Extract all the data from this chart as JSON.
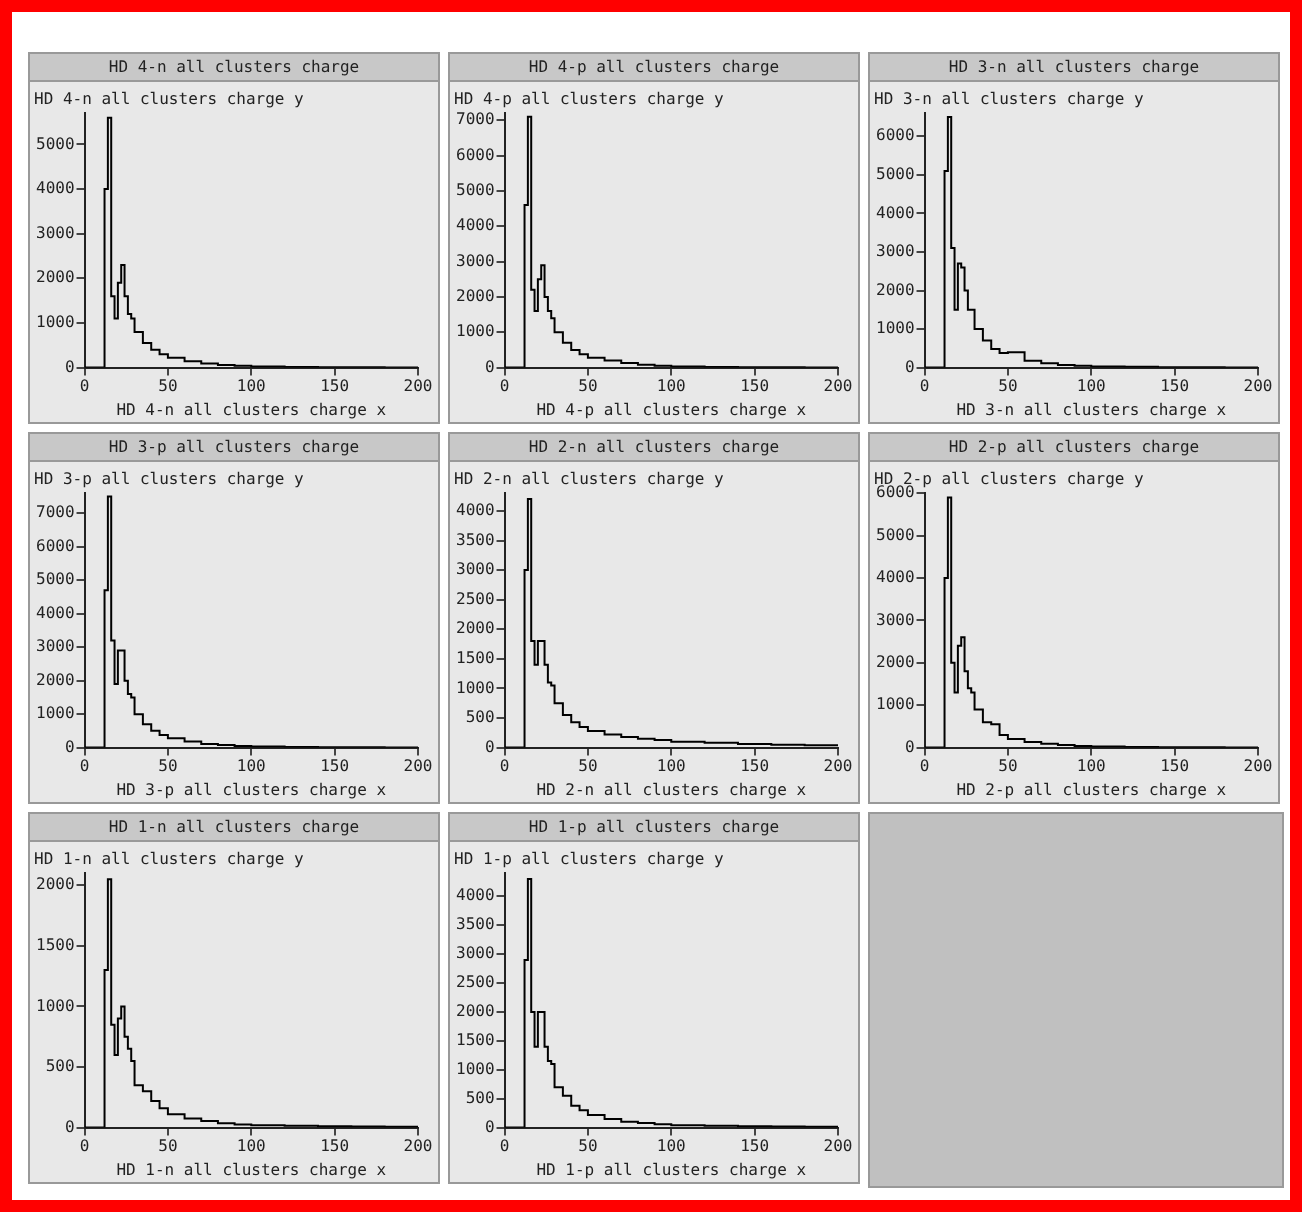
{
  "chart_data": [
    {
      "type": "histogram",
      "title": "HD 4-n all clusters charge",
      "ylabel": "HD 4-n all clusters charge y",
      "xlabel": "HD 4-n all clusters charge x",
      "bins": [
        0,
        10,
        12,
        14,
        16,
        18,
        20,
        22,
        24,
        26,
        28,
        30,
        35,
        40,
        45,
        50,
        60,
        70,
        80,
        90,
        100,
        120,
        140,
        160,
        180,
        200
      ],
      "values": [
        0,
        0,
        4000,
        5600,
        1600,
        1100,
        1900,
        2300,
        1600,
        1200,
        1100,
        800,
        550,
        400,
        300,
        220,
        140,
        90,
        60,
        40,
        25,
        15,
        10,
        8,
        5
      ],
      "color": "#000000",
      "xlim": [
        0,
        200
      ],
      "xticks": [
        0,
        50,
        100,
        150,
        200
      ],
      "ylim": [
        0,
        5700
      ],
      "yticks": [
        0,
        1000,
        2000,
        3000,
        4000,
        5000
      ],
      "grid": false,
      "legend": false
    },
    {
      "type": "histogram",
      "title": "HD 4-p all clusters charge",
      "ylabel": "HD 4-p all clusters charge y",
      "xlabel": "HD 4-p all clusters charge x",
      "bins": [
        0,
        10,
        12,
        14,
        16,
        18,
        20,
        22,
        24,
        26,
        28,
        30,
        35,
        40,
        45,
        50,
        60,
        70,
        80,
        90,
        100,
        120,
        140,
        160,
        180,
        200
      ],
      "values": [
        0,
        0,
        4600,
        7100,
        2200,
        1600,
        2500,
        2900,
        2000,
        1600,
        1400,
        1000,
        700,
        500,
        380,
        280,
        200,
        130,
        80,
        50,
        30,
        20,
        12,
        8,
        5
      ],
      "color": "#000000",
      "xlim": [
        0,
        200
      ],
      "xticks": [
        0,
        50,
        100,
        150,
        200
      ],
      "ylim": [
        0,
        7200
      ],
      "yticks": [
        0,
        1000,
        2000,
        3000,
        4000,
        5000,
        6000,
        7000
      ],
      "grid": false,
      "legend": false
    },
    {
      "type": "histogram",
      "title": "HD 3-n all clusters charge",
      "ylabel": "HD 3-n all clusters charge y",
      "xlabel": "HD 3-n all clusters charge x",
      "bins": [
        0,
        10,
        12,
        14,
        16,
        18,
        20,
        22,
        24,
        26,
        28,
        30,
        35,
        40,
        45,
        50,
        60,
        70,
        80,
        90,
        100,
        120,
        140,
        160,
        180,
        200
      ],
      "values": [
        0,
        0,
        5100,
        6500,
        3100,
        1500,
        2700,
        2600,
        2000,
        1500,
        1500,
        1000,
        700,
        480,
        380,
        400,
        180,
        110,
        70,
        50,
        30,
        20,
        12,
        8,
        5
      ],
      "color": "#000000",
      "xlim": [
        0,
        200
      ],
      "xticks": [
        0,
        50,
        100,
        150,
        200
      ],
      "ylim": [
        0,
        6600
      ],
      "yticks": [
        0,
        1000,
        2000,
        3000,
        4000,
        5000,
        6000
      ],
      "grid": false,
      "legend": false
    },
    {
      "type": "histogram",
      "title": "HD 3-p all clusters charge",
      "ylabel": "HD 3-p all clusters charge y",
      "xlabel": "HD 3-p all clusters charge x",
      "bins": [
        0,
        10,
        12,
        14,
        16,
        18,
        20,
        22,
        24,
        26,
        28,
        30,
        35,
        40,
        45,
        50,
        60,
        70,
        80,
        90,
        100,
        120,
        140,
        160,
        180,
        200
      ],
      "values": [
        0,
        0,
        4700,
        7500,
        3200,
        1900,
        2900,
        2900,
        2000,
        1600,
        1500,
        1000,
        700,
        500,
        380,
        280,
        180,
        110,
        80,
        50,
        30,
        20,
        12,
        8,
        5
      ],
      "color": "#000000",
      "xlim": [
        0,
        200
      ],
      "xticks": [
        0,
        50,
        100,
        150,
        200
      ],
      "ylim": [
        0,
        7600
      ],
      "yticks": [
        0,
        1000,
        2000,
        3000,
        4000,
        5000,
        6000,
        7000
      ],
      "grid": false,
      "legend": false
    },
    {
      "type": "histogram",
      "title": "HD 2-n all clusters charge",
      "ylabel": "HD 2-n all clusters charge y",
      "xlabel": "HD 2-n all clusters charge x",
      "bins": [
        0,
        10,
        12,
        14,
        16,
        18,
        20,
        22,
        24,
        26,
        28,
        30,
        35,
        40,
        45,
        50,
        60,
        70,
        80,
        90,
        100,
        120,
        140,
        160,
        180,
        200
      ],
      "values": [
        0,
        0,
        3000,
        4200,
        1800,
        1400,
        1800,
        1800,
        1400,
        1100,
        1050,
        750,
        550,
        430,
        350,
        280,
        220,
        180,
        150,
        130,
        100,
        80,
        60,
        50,
        40
      ],
      "color": "#000000",
      "xlim": [
        0,
        200
      ],
      "xticks": [
        0,
        50,
        100,
        150,
        200
      ],
      "ylim": [
        0,
        4300
      ],
      "yticks": [
        0,
        500,
        1000,
        1500,
        2000,
        2500,
        3000,
        3500,
        4000
      ],
      "grid": false,
      "legend": false
    },
    {
      "type": "histogram",
      "title": "HD 2-p all clusters charge",
      "ylabel": "HD 2-p all clusters charge y",
      "xlabel": "HD 2-p all clusters charge x",
      "bins": [
        0,
        10,
        12,
        14,
        16,
        18,
        20,
        22,
        24,
        26,
        28,
        30,
        35,
        40,
        45,
        50,
        60,
        70,
        80,
        90,
        100,
        120,
        140,
        160,
        180,
        200
      ],
      "values": [
        0,
        0,
        4000,
        5900,
        2000,
        1300,
        2400,
        2600,
        1800,
        1400,
        1300,
        900,
        600,
        550,
        300,
        200,
        130,
        90,
        60,
        40,
        25,
        15,
        10,
        8,
        5
      ],
      "color": "#000000",
      "xlim": [
        0,
        200
      ],
      "xticks": [
        0,
        50,
        100,
        150,
        200
      ],
      "ylim": [
        0,
        6000
      ],
      "yticks": [
        0,
        1000,
        2000,
        3000,
        4000,
        5000,
        6000
      ],
      "grid": false,
      "legend": false
    },
    {
      "type": "histogram",
      "title": "HD 1-n all clusters charge",
      "ylabel": "HD 1-n all clusters charge y",
      "xlabel": "HD 1-n all clusters charge x",
      "bins": [
        0,
        10,
        12,
        14,
        16,
        18,
        20,
        22,
        24,
        26,
        28,
        30,
        35,
        40,
        45,
        50,
        60,
        70,
        80,
        90,
        100,
        120,
        140,
        160,
        180,
        200
      ],
      "values": [
        0,
        0,
        1300,
        2050,
        850,
        600,
        900,
        1000,
        750,
        650,
        550,
        350,
        300,
        220,
        160,
        110,
        75,
        55,
        35,
        25,
        20,
        15,
        12,
        10,
        8
      ],
      "color": "#000000",
      "xlim": [
        0,
        200
      ],
      "xticks": [
        0,
        50,
        100,
        150,
        200
      ],
      "ylim": [
        0,
        2100
      ],
      "yticks": [
        0,
        500,
        1000,
        1500,
        2000
      ],
      "grid": false,
      "legend": false
    },
    {
      "type": "histogram",
      "title": "HD 1-p all clusters charge",
      "ylabel": "HD 1-p all clusters charge y",
      "xlabel": "HD 1-p all clusters charge x",
      "bins": [
        0,
        10,
        12,
        14,
        16,
        18,
        20,
        22,
        24,
        26,
        28,
        30,
        35,
        40,
        45,
        50,
        60,
        70,
        80,
        90,
        100,
        120,
        140,
        160,
        180,
        200
      ],
      "values": [
        0,
        0,
        2900,
        4300,
        2000,
        1400,
        2000,
        2000,
        1400,
        1150,
        1100,
        700,
        550,
        380,
        300,
        220,
        150,
        100,
        80,
        60,
        40,
        30,
        25,
        20,
        15
      ],
      "color": "#000000",
      "xlim": [
        0,
        200
      ],
      "xticks": [
        0,
        50,
        100,
        150,
        200
      ],
      "ylim": [
        0,
        4400
      ],
      "yticks": [
        0,
        500,
        1000,
        1500,
        2000,
        2500,
        3000,
        3500,
        4000
      ],
      "grid": false,
      "legend": false
    }
  ]
}
